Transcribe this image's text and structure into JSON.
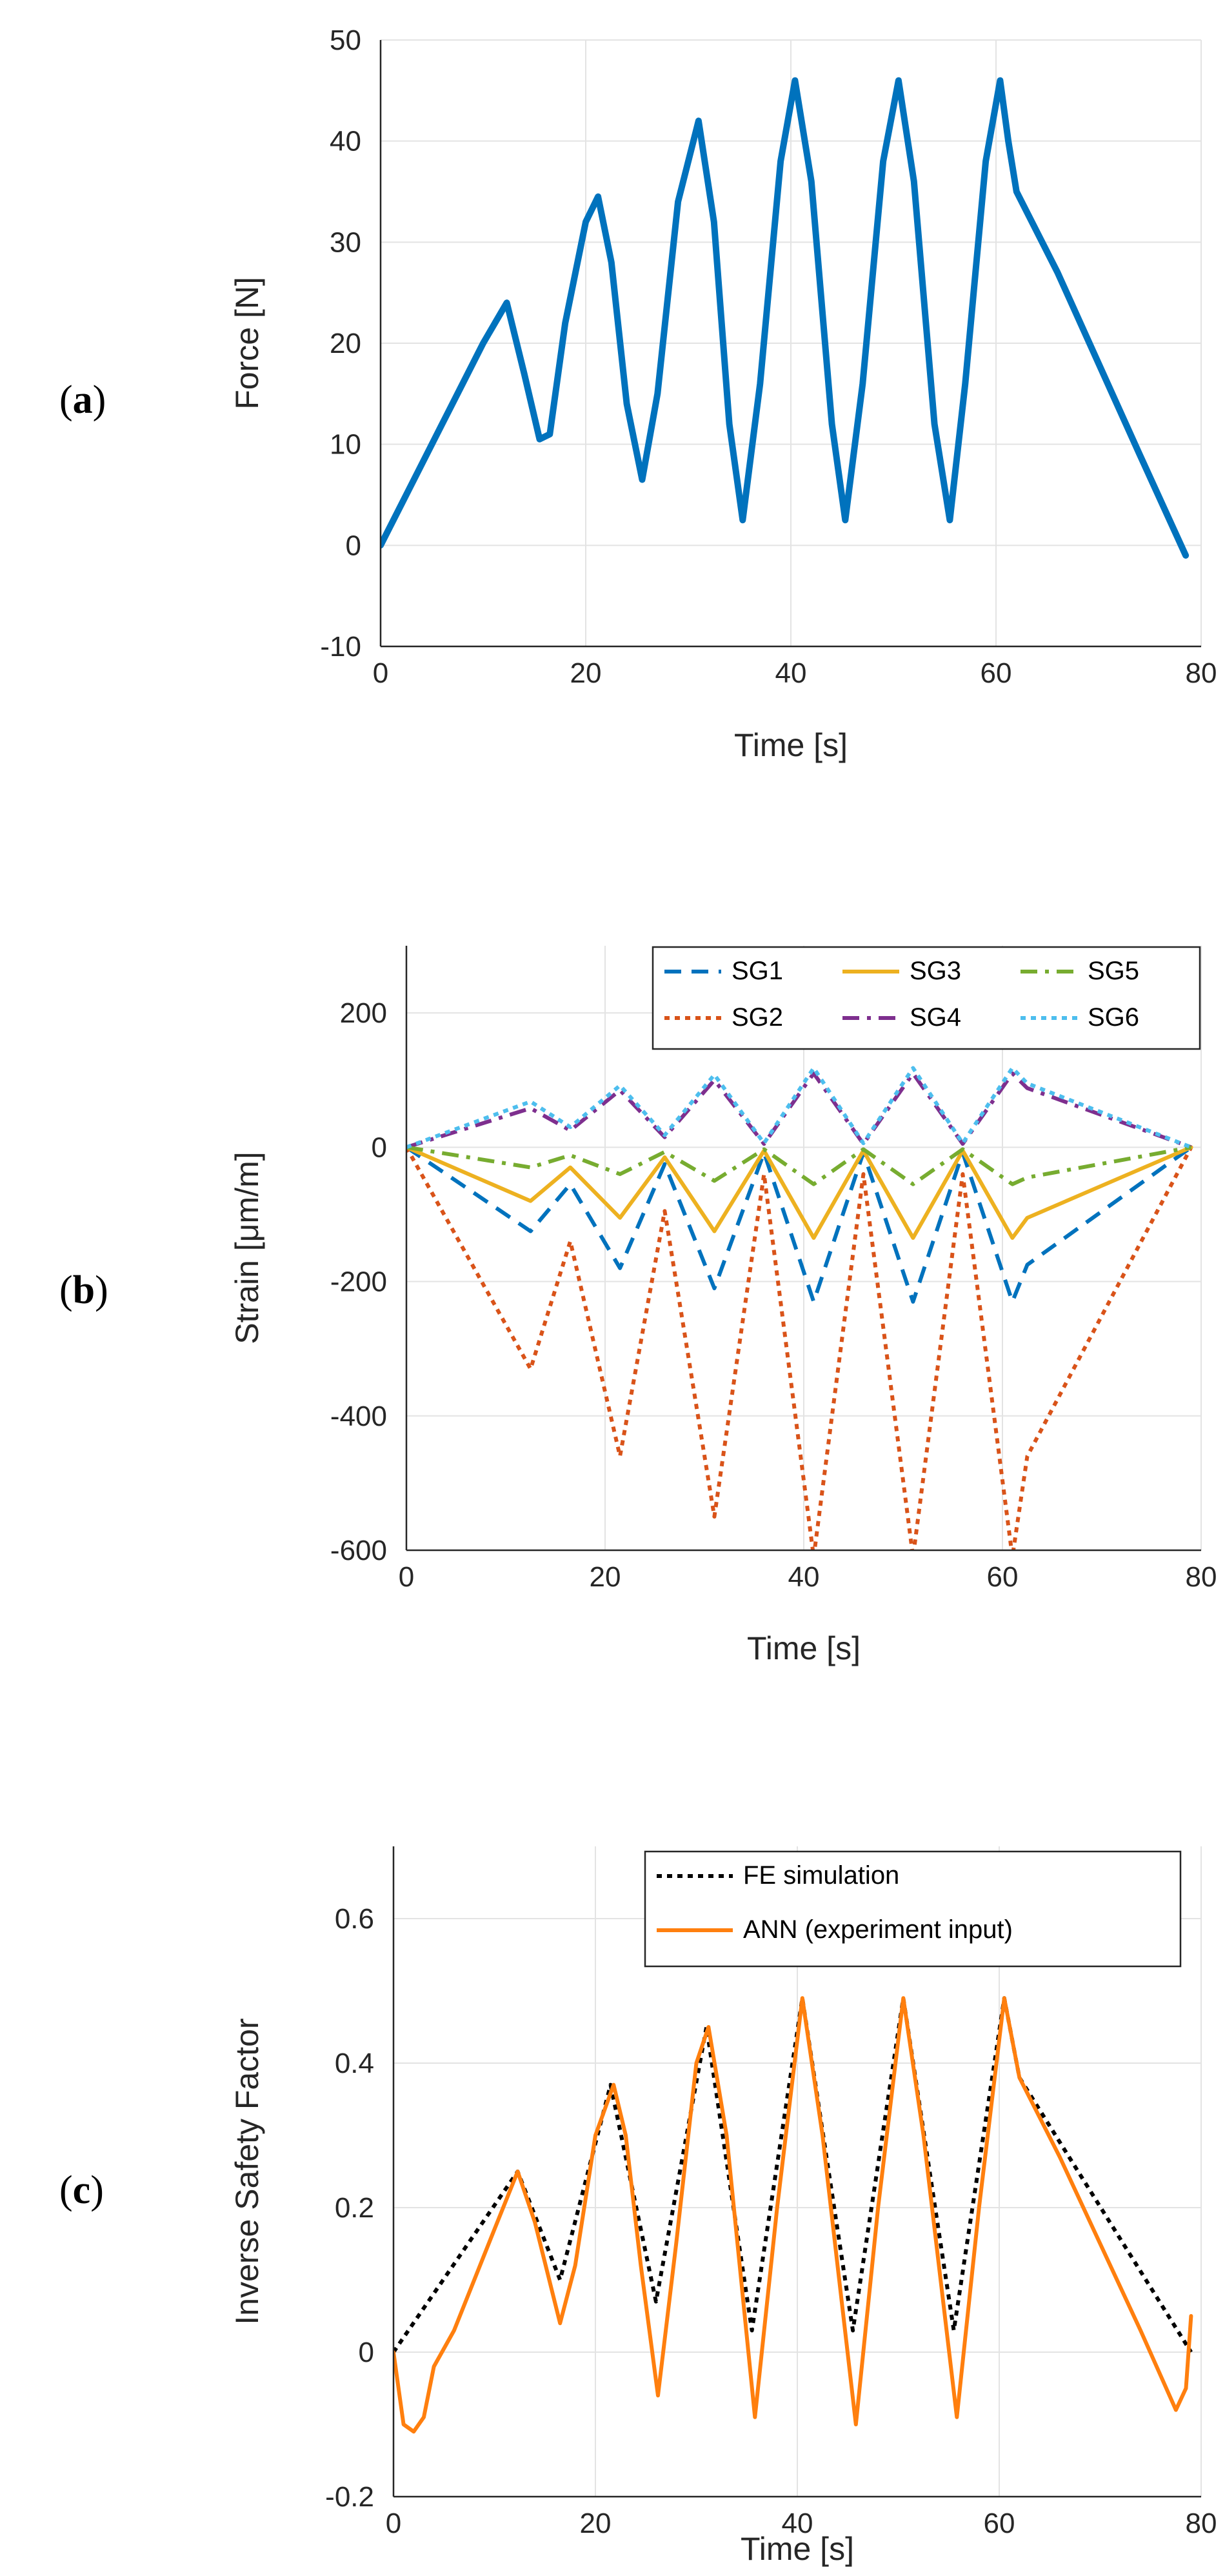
{
  "chart_data": [
    {
      "id": "a",
      "panel_label": "a",
      "type": "line",
      "xlabel": "Time [s]",
      "ylabel": "Force [N]",
      "xlim": [
        0,
        80
      ],
      "ylim": [
        -10,
        50
      ],
      "xticks": [
        "0",
        "20",
        "40",
        "60",
        "80"
      ],
      "yticks": [
        "-10",
        "0",
        "10",
        "20",
        "30",
        "40",
        "50"
      ],
      "grid": true,
      "series": [
        {
          "name": "Force",
          "color": "#0072BD",
          "style": "solid",
          "x": [
            0,
            2,
            4,
            6,
            8,
            10,
            12.3,
            14,
            15.5,
            16.5,
            18,
            20,
            21.2,
            22.5,
            24,
            25.5,
            27,
            29,
            31,
            32.5,
            34,
            35.3,
            37,
            39,
            40.4,
            42,
            44,
            45.3,
            47,
            49,
            50.5,
            52,
            54,
            55.5,
            57,
            59,
            60.4,
            61.2,
            62,
            66,
            70,
            74,
            78.5
          ],
          "y": [
            0,
            4,
            8,
            12,
            16,
            20,
            24,
            17,
            10.5,
            11,
            22,
            32,
            34.5,
            28,
            14,
            6.5,
            15,
            34,
            42,
            32,
            12,
            2.5,
            16,
            38,
            46,
            36,
            12,
            2.5,
            16,
            38,
            46,
            36,
            12,
            2.5,
            16,
            38,
            46,
            40,
            35,
            27,
            18,
            9,
            -1
          ]
        }
      ]
    },
    {
      "id": "b",
      "panel_label": "b",
      "type": "line",
      "xlabel": "Time [s]",
      "ylabel": "Strain [μm/m]",
      "xlim": [
        0,
        80
      ],
      "ylim": [
        -600,
        300
      ],
      "xticks": [
        "0",
        "20",
        "40",
        "60",
        "80"
      ],
      "yticks": [
        "-600",
        "-400",
        "-200",
        "0",
        "200"
      ],
      "grid": true,
      "legend_position": "top-right",
      "categories_x": [
        0,
        12.5,
        16.5,
        21.5,
        26,
        31,
        36,
        41,
        46,
        51,
        56,
        61,
        62.5,
        79
      ],
      "series": [
        {
          "name": "SG1",
          "color": "#0072BD",
          "style": "dashed",
          "values": [
            0,
            -125,
            -55,
            -180,
            -25,
            -210,
            -8,
            -230,
            -8,
            -230,
            -8,
            -230,
            -175,
            0
          ]
        },
        {
          "name": "SG2",
          "color": "#D95319",
          "style": "dotted",
          "values": [
            0,
            -330,
            -140,
            -460,
            -95,
            -550,
            -40,
            -610,
            -40,
            -610,
            -40,
            -610,
            -460,
            0
          ]
        },
        {
          "name": "SG3",
          "color": "#EDB120",
          "style": "solid",
          "values": [
            0,
            -80,
            -30,
            -105,
            -15,
            -125,
            -5,
            -135,
            -5,
            -135,
            -5,
            -135,
            -105,
            0
          ]
        },
        {
          "name": "SG4",
          "color": "#7E2F8E",
          "style": "dashdot",
          "values": [
            0,
            58,
            25,
            85,
            15,
            100,
            5,
            110,
            5,
            110,
            5,
            110,
            88,
            0
          ]
        },
        {
          "name": "SG5",
          "color": "#77AC30",
          "style": "dashdot",
          "values": [
            0,
            -30,
            -12,
            -40,
            -7,
            -50,
            -3,
            -55,
            -3,
            -55,
            -3,
            -55,
            -45,
            0
          ]
        },
        {
          "name": "SG6",
          "color": "#4DBEEE",
          "style": "dotted",
          "values": [
            0,
            68,
            30,
            92,
            18,
            108,
            6,
            118,
            6,
            118,
            6,
            118,
            95,
            0
          ]
        }
      ]
    },
    {
      "id": "c",
      "panel_label": "c",
      "type": "line",
      "xlabel": "Time [s]",
      "ylabel": "Inverse Safety Factor",
      "xlim": [
        0,
        80
      ],
      "ylim": [
        -0.2,
        0.7
      ],
      "xticks": [
        "0",
        "20",
        "40",
        "60",
        "80"
      ],
      "yticks": [
        "-0.2",
        "0",
        "0.2",
        "0.4",
        "0.6"
      ],
      "grid": true,
      "legend_position": "top-right",
      "series": [
        {
          "name": "FE simulation",
          "color": "#000000",
          "style": "dotted",
          "x": [
            0,
            12.3,
            16.5,
            21.5,
            26,
            31,
            35.5,
            40.5,
            45.5,
            50.5,
            55.5,
            60.5,
            62,
            79
          ],
          "y": [
            0,
            0.25,
            0.1,
            0.37,
            0.07,
            0.45,
            0.03,
            0.49,
            0.03,
            0.49,
            0.03,
            0.49,
            0.38,
            0
          ]
        },
        {
          "name": "ANN (experiment input)",
          "color": "#FF7F0E",
          "style": "solid",
          "x": [
            0,
            1,
            2,
            3,
            4,
            6,
            8,
            10,
            12.3,
            14,
            16.5,
            18,
            20,
            21.8,
            23,
            24.5,
            26.2,
            28,
            30,
            31.2,
            33,
            35.8,
            38,
            40.5,
            42.5,
            45.8,
            48,
            50.5,
            52.5,
            55.8,
            58,
            60.5,
            62,
            66,
            70,
            74,
            77.5,
            78.5,
            79
          ],
          "y": [
            0,
            -0.1,
            -0.11,
            -0.09,
            -0.02,
            0.03,
            0.1,
            0.17,
            0.25,
            0.18,
            0.04,
            0.12,
            0.3,
            0.37,
            0.3,
            0.12,
            -0.06,
            0.15,
            0.4,
            0.45,
            0.3,
            -0.09,
            0.2,
            0.49,
            0.3,
            -0.1,
            0.2,
            0.49,
            0.3,
            -0.09,
            0.2,
            0.49,
            0.38,
            0.27,
            0.15,
            0.03,
            -0.08,
            -0.05,
            0.05
          ]
        }
      ]
    }
  ]
}
